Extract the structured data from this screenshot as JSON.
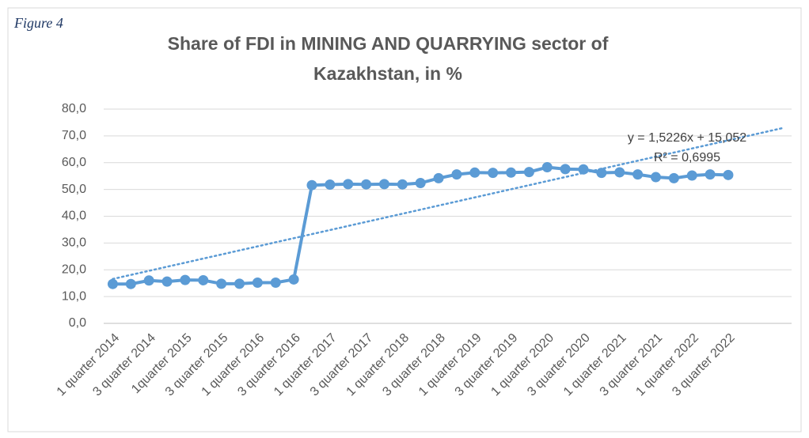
{
  "figure_label": "Figure 4",
  "chart_data": {
    "type": "line",
    "title": [
      "Share of FDI in MINING AND QUARRYING sector of",
      "Kazakhstan, in %"
    ],
    "categories": [
      "1 quarter 2014",
      null,
      "3 quarter 2014",
      null,
      "1quarter 2015",
      null,
      "3 quarter 2015",
      null,
      "1 quarter 2016",
      null,
      "3 quarter 2016",
      null,
      "1 quarter 2017",
      null,
      "3 quarter 2017",
      null,
      "1 quarter 2018",
      null,
      "3 quarter 2018",
      null,
      "1 quarter 2019",
      null,
      "3 quarter 2019",
      null,
      "1 quarter 2020",
      null,
      "3 quarter 2020",
      null,
      "1 quarter 2021",
      null,
      "3 quarter 2021",
      null,
      "1 quarter 2022",
      null,
      "3 quarter 2022"
    ],
    "series": [
      {
        "name": "Share of FDI",
        "color": "#5b9bd5",
        "values": [
          14.7,
          14.7,
          16.0,
          15.6,
          16.2,
          16.1,
          14.8,
          14.8,
          15.2,
          15.2,
          16.4,
          51.6,
          51.8,
          52.0,
          51.9,
          52.0,
          51.9,
          52.4,
          54.2,
          55.6,
          56.3,
          56.2,
          56.3,
          56.5,
          58.3,
          57.6,
          57.5,
          56.2,
          56.4,
          55.6,
          54.6,
          54.2,
          55.2,
          55.6,
          55.4
        ]
      }
    ],
    "ylim": [
      0,
      80
    ],
    "yticks": [
      {
        "value": 0,
        "label": "0,0"
      },
      {
        "value": 10,
        "label": "10,0"
      },
      {
        "value": 20,
        "label": "20,0"
      },
      {
        "value": 30,
        "label": "30,0"
      },
      {
        "value": 40,
        "label": "40,0"
      },
      {
        "value": 50,
        "label": "50,0"
      },
      {
        "value": 60,
        "label": "60,0"
      },
      {
        "value": 70,
        "label": "70,0"
      },
      {
        "value": 80,
        "label": "80,0"
      }
    ],
    "grid": true,
    "trendline": {
      "equation": "y = 1,5226x + 15,052",
      "r_squared": "R² = 0,6995",
      "slope": 1.5226,
      "intercept": 15.052,
      "forward": 3
    }
  }
}
